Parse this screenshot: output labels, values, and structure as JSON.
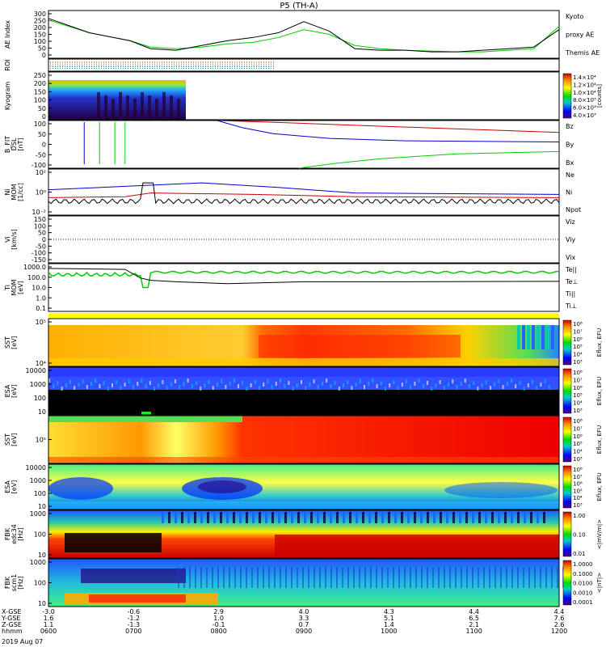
{
  "title": "P5 (TH-A)",
  "date_label": "2019 Aug 07",
  "chart_data": [
    {
      "type": "line",
      "panel": "ae",
      "ylabel": "AE Index",
      "yticks": [
        "300",
        "250",
        "200",
        "150",
        "100",
        "50",
        "0"
      ],
      "ylim": [
        0,
        300
      ],
      "series": [
        {
          "name": "Kyoto",
          "color": "#00cc00"
        },
        {
          "name": "proxy AE",
          "color": "#00cc00"
        },
        {
          "name": "Themis AE",
          "color": "#000000"
        }
      ],
      "x": [
        0,
        0.08,
        0.16,
        0.2,
        0.25,
        0.3,
        0.35,
        0.4,
        0.45,
        0.5,
        0.55,
        0.6,
        0.65,
        0.7,
        0.75,
        0.8,
        0.85,
        0.9,
        0.95,
        1.0
      ],
      "values_green": [
        240,
        160,
        110,
        70,
        60,
        70,
        90,
        100,
        130,
        180,
        150,
        80,
        60,
        50,
        45,
        40,
        40,
        50,
        60,
        200
      ],
      "values_black": [
        250,
        160,
        110,
        60,
        50,
        80,
        110,
        130,
        160,
        230,
        170,
        60,
        50,
        50,
        40,
        40,
        50,
        60,
        70,
        180
      ]
    },
    {
      "type": "line",
      "panel": "roi",
      "ylabel": "ROI"
    },
    {
      "type": "heatmap",
      "panel": "kyogram",
      "ylabel": "Kyogram",
      "yticks": [
        "250",
        "200",
        "150",
        "100",
        "50",
        "0"
      ],
      "ylim": [
        0,
        250
      ],
      "colorbar": {
        "ticks": [
          "1.4×10⁴",
          "1.2×10⁴",
          "1.0×10⁴",
          "8.0×10³",
          "6.0×10³",
          "4.0×10³"
        ],
        "label": "[counts]"
      }
    },
    {
      "type": "line",
      "panel": "bfgm",
      "ylabel": "B_FIT\nDSL\n[nT]",
      "yticks": [
        "100",
        "50",
        "0",
        "-50",
        "-100"
      ],
      "ylim": [
        -100,
        100
      ],
      "series": [
        {
          "name": "Bz",
          "color": "#cc0000"
        },
        {
          "name": "By",
          "color": "#00cc00"
        },
        {
          "name": "Bx",
          "color": "#0000cc"
        }
      ]
    },
    {
      "type": "line",
      "panel": "ni",
      "ylabel": "Ni\nMOM\n[1/cc]",
      "yticks": [
        "10²",
        "10⁰",
        "10⁻²"
      ],
      "series": [
        {
          "name": "Ne",
          "color": "#cc0000"
        },
        {
          "name": "Ni",
          "color": "#000000"
        },
        {
          "name": "Npot",
          "color": "#0000cc"
        }
      ]
    },
    {
      "type": "line",
      "panel": "vi",
      "ylabel": "Vi\n[km/s]",
      "yticks": [
        "150",
        "100",
        "50",
        "0",
        "-50",
        "-100",
        "-150"
      ],
      "ylim": [
        -150,
        150
      ],
      "series": [
        {
          "name": "Viz",
          "color": "#cc0000"
        },
        {
          "name": "Viy",
          "color": "#00cc00"
        },
        {
          "name": "Vix",
          "color": "#0000cc"
        }
      ]
    },
    {
      "type": "line",
      "panel": "ti",
      "ylabel": "Ti\nMOM\n[eV]",
      "yticks": [
        "1000.0",
        "100.0",
        "10.0",
        "1.0",
        "0.1"
      ],
      "series": [
        {
          "name": "Te||",
          "color": "#000000"
        },
        {
          "name": "Te⊥",
          "color": "#cc0000"
        },
        {
          "name": "Ti||",
          "color": "#00cc00"
        },
        {
          "name": "Ti⊥",
          "color": "#0000cc"
        }
      ]
    },
    {
      "type": "heatmap",
      "panel": "sst_e",
      "ylabel": "SST\n[eV]",
      "yticks": [
        "10⁵",
        "10⁴"
      ],
      "colorbar": {
        "ticks": [
          "10⁸",
          "10⁷",
          "10⁶",
          "10⁵",
          "10⁴",
          "10³"
        ],
        "label": "Eflux, EFU"
      }
    },
    {
      "type": "heatmap",
      "panel": "esa_e",
      "ylabel": "ESA\n[eV]",
      "yticks": [
        "10000",
        "1000",
        "100",
        "10"
      ],
      "colorbar": {
        "ticks": [
          "10⁸",
          "10⁷",
          "10⁶",
          "10⁵",
          "10⁴",
          "10³"
        ],
        "label": "Eflux, EFU"
      }
    },
    {
      "type": "heatmap",
      "panel": "sst_i",
      "ylabel": "SST\n[eV]",
      "yticks": [
        "10⁵"
      ],
      "colorbar": {
        "ticks": [
          "10⁸",
          "10⁷",
          "10⁶",
          "10⁵",
          "10⁴",
          "10³"
        ],
        "label": "Eflux, EFU"
      }
    },
    {
      "type": "heatmap",
      "panel": "esa_i",
      "ylabel": "ESA\n[eV]",
      "yticks": [
        "10000",
        "1000",
        "100",
        "10"
      ],
      "colorbar": {
        "ticks": [
          "10⁸",
          "10⁷",
          "10⁶",
          "10⁵",
          "10⁴",
          "10³"
        ],
        "label": "Eflux, EFU"
      }
    },
    {
      "type": "heatmap",
      "panel": "fbk_e",
      "ylabel": "FBK\nedc34\n[Hz]",
      "yticks": [
        "1000",
        "100",
        "10"
      ],
      "colorbar": {
        "ticks": [
          "1.00",
          "0.10",
          "0.01"
        ],
        "label": "<|mV/m|>"
      }
    },
    {
      "type": "heatmap",
      "panel": "fbk_b",
      "ylabel": "FBK\nscm1\n[Hz]",
      "yticks": [
        "1000",
        "100",
        "10"
      ],
      "colorbar": {
        "ticks": [
          "1.0000",
          "0.1000",
          "0.0100",
          "0.0010",
          "0.0001"
        ],
        "label": "<|nT|>"
      }
    }
  ],
  "x_axis": {
    "rows": [
      {
        "label": "X-GSE",
        "values": [
          "-3.0",
          "-0.6",
          "2.9",
          "4.0",
          "4.3",
          "4.4",
          "4.4"
        ]
      },
      {
        "label": "Y-GSE",
        "values": [
          "1.6",
          "-1.2",
          "1.0",
          "3.3",
          "5.1",
          "6.5",
          "7.6"
        ]
      },
      {
        "label": "Z-GSE",
        "values": [
          "1.1",
          "-1.3",
          "-0.1",
          "0.7",
          "1.4",
          "2.1",
          "2.6"
        ]
      },
      {
        "label": "hhmm",
        "values": [
          "0600",
          "0700",
          "0800",
          "0900",
          "1000",
          "1100",
          "1200"
        ]
      }
    ]
  }
}
